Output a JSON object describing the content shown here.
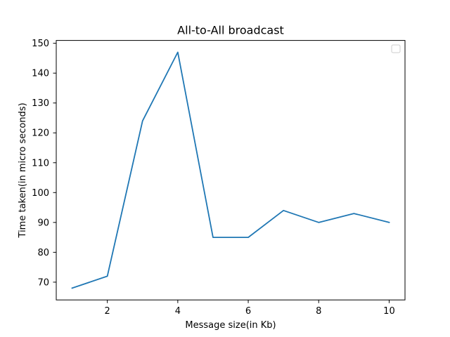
{
  "chart_data": {
    "type": "line",
    "title": "All-to-All broadcast",
    "xlabel": "Message size(in Kb)",
    "ylabel": "Time taken(in micro seconds)",
    "x": [
      1,
      2,
      3,
      4,
      5,
      6,
      7,
      8,
      9,
      10
    ],
    "series": [
      {
        "values": [
          68,
          72,
          124,
          147,
          85,
          85,
          94,
          90,
          93,
          90
        ],
        "color": "#1f77b4"
      }
    ],
    "xlim": [
      0.55,
      10.45
    ],
    "ylim": [
      64.05,
      150.95
    ],
    "xticks": [
      2,
      4,
      6,
      8,
      10
    ],
    "yticks": [
      70,
      80,
      90,
      100,
      110,
      120,
      130,
      140,
      150
    ],
    "grid": false,
    "legend": {
      "placement": "top-right",
      "entries": []
    }
  }
}
